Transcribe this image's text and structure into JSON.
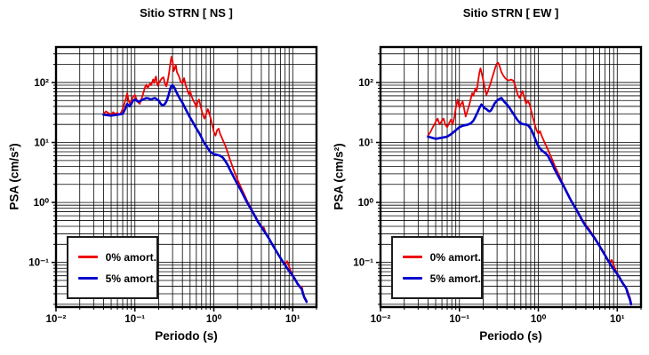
{
  "figure": {
    "background": "#ffffff",
    "text_color": "#000000",
    "grid_color": "#000000"
  },
  "chart_data": [
    {
      "type": "line",
      "title": "Sitio STRN [ NS ]",
      "xlabel": "Periodo (s)",
      "ylabel": "PSA (cm/s²)",
      "xscale": "log",
      "yscale": "log",
      "xlim": [
        0.01,
        20
      ],
      "ylim": [
        0.018,
        390
      ],
      "grid": "major+minor",
      "x_ticks": {
        "values": [
          0.01,
          0.1,
          1,
          10
        ],
        "labels": [
          "10⁻²",
          "10⁻¹",
          "10⁰",
          "10¹"
        ]
      },
      "y_ticks": {
        "values": [
          0.1,
          1,
          10,
          100
        ],
        "labels": [
          "10⁻¹",
          "10⁰",
          "10¹",
          "10²"
        ]
      },
      "legend": {
        "position": "lower-left",
        "entries": [
          {
            "label": "0% amort.",
            "color": "#ee0000"
          },
          {
            "label": "5% amort.",
            "color": "#0000cd"
          }
        ]
      },
      "series": [
        {
          "name": "0% amort.",
          "color": "#ee0000",
          "x": [
            0.04,
            0.043,
            0.046,
            0.05,
            0.053,
            0.056,
            0.06,
            0.064,
            0.068,
            0.072,
            0.077,
            0.08,
            0.083,
            0.087,
            0.09,
            0.095,
            0.1,
            0.105,
            0.11,
            0.115,
            0.12,
            0.125,
            0.13,
            0.135,
            0.14,
            0.145,
            0.15,
            0.155,
            0.16,
            0.165,
            0.17,
            0.175,
            0.18,
            0.185,
            0.19,
            0.195,
            0.2,
            0.21,
            0.22,
            0.23,
            0.24,
            0.25,
            0.26,
            0.27,
            0.28,
            0.29,
            0.3,
            0.31,
            0.32,
            0.33,
            0.34,
            0.36,
            0.38,
            0.4,
            0.42,
            0.44,
            0.46,
            0.48,
            0.5,
            0.52,
            0.55,
            0.58,
            0.6,
            0.62,
            0.65,
            0.68,
            0.72,
            0.76,
            0.8,
            0.84,
            0.88,
            0.92,
            0.96,
            1.0,
            1.05,
            1.1,
            1.15,
            1.2,
            1.3,
            1.4,
            1.5,
            1.6,
            1.8,
            2.0,
            2.2,
            2.5,
            2.7,
            3.0,
            3.3,
            3.6,
            4.0,
            4.3,
            4.6,
            5.0,
            5.5,
            6.0,
            6.5,
            7.0,
            7.5,
            8.0,
            8.5,
            9.0,
            9.5,
            10,
            10.5,
            11,
            11.5,
            12,
            12.5,
            13,
            13.5,
            14,
            14.5,
            15
          ],
          "y": [
            30,
            33,
            31,
            29,
            32,
            30,
            31,
            29,
            33,
            40,
            55,
            66,
            50,
            44,
            50,
            58,
            62,
            52,
            47,
            44,
            52,
            60,
            72,
            85,
            92,
            80,
            88,
            96,
            90,
            100,
            112,
            98,
            115,
            126,
            100,
            88,
            96,
            108,
            118,
            122,
            96,
            86,
            106,
            140,
            200,
            268,
            230,
            155,
            172,
            196,
            150,
            128,
            104,
            96,
            118,
            90,
            76,
            64,
            72,
            60,
            50,
            44,
            38,
            46,
            52,
            40,
            30,
            25,
            30,
            36,
            30,
            24,
            19,
            15,
            13,
            16,
            17,
            14,
            11,
            8.8,
            6.8,
            5.2,
            3.4,
            2.4,
            1.8,
            1.25,
            1.0,
            0.78,
            0.62,
            0.5,
            0.4,
            0.38,
            0.3,
            0.25,
            0.2,
            0.165,
            0.14,
            0.12,
            0.105,
            0.092,
            0.105,
            0.085,
            0.07,
            0.062,
            0.056,
            0.05,
            0.045,
            0.042,
            0.038,
            0.04,
            0.032,
            0.027,
            0.025,
            0.023
          ]
        },
        {
          "name": "5% amort.",
          "color": "#0000cd",
          "x": [
            0.04,
            0.05,
            0.06,
            0.07,
            0.075,
            0.08,
            0.085,
            0.09,
            0.095,
            0.1,
            0.11,
            0.12,
            0.13,
            0.14,
            0.15,
            0.16,
            0.17,
            0.18,
            0.19,
            0.2,
            0.21,
            0.22,
            0.23,
            0.24,
            0.25,
            0.26,
            0.27,
            0.28,
            0.29,
            0.3,
            0.31,
            0.32,
            0.33,
            0.35,
            0.37,
            0.4,
            0.43,
            0.46,
            0.5,
            0.54,
            0.58,
            0.62,
            0.66,
            0.7,
            0.75,
            0.8,
            0.85,
            0.9,
            0.95,
            1.0,
            1.1,
            1.2,
            1.3,
            1.4,
            1.5,
            1.6,
            1.8,
            2.0,
            2.2,
            2.5,
            2.7,
            3.0,
            3.3,
            3.6,
            4.0,
            4.5,
            5.0,
            5.5,
            6.0,
            6.5,
            7.0,
            7.5,
            8.0,
            8.5,
            9.0,
            9.5,
            10,
            10.5,
            11,
            11.5,
            12,
            12.5,
            13,
            13.5,
            14,
            14.5,
            15
          ],
          "y": [
            29,
            28,
            29,
            30,
            36,
            44,
            40,
            44,
            50,
            52,
            48,
            50,
            53,
            55,
            54,
            52,
            54,
            55,
            52,
            50,
            45,
            42,
            42,
            44,
            48,
            55,
            65,
            78,
            88,
            90,
            85,
            80,
            72,
            62,
            54,
            46,
            38,
            32,
            26,
            22,
            18.5,
            16,
            14,
            12,
            10,
            8.8,
            7.8,
            7.0,
            6.6,
            6.4,
            6.2,
            6.0,
            5.6,
            4.9,
            4.2,
            3.5,
            2.6,
            2.0,
            1.6,
            1.15,
            0.95,
            0.75,
            0.6,
            0.48,
            0.39,
            0.31,
            0.25,
            0.2,
            0.165,
            0.138,
            0.118,
            0.102,
            0.09,
            0.08,
            0.072,
            0.066,
            0.06,
            0.054,
            0.049,
            0.044,
            0.041,
            0.038,
            0.036,
            0.03,
            0.026,
            0.024,
            0.022
          ]
        }
      ]
    },
    {
      "type": "line",
      "title": "Sitio STRN [ EW ]",
      "xlabel": "Periodo (s)",
      "ylabel": "PSA (cm/s²)",
      "xscale": "log",
      "yscale": "log",
      "xlim": [
        0.01,
        20
      ],
      "ylim": [
        0.018,
        390
      ],
      "grid": "major+minor",
      "x_ticks": {
        "values": [
          0.01,
          0.1,
          1,
          10
        ],
        "labels": [
          "10⁻²",
          "10⁻¹",
          "10⁰",
          "10¹"
        ]
      },
      "y_ticks": {
        "values": [
          0.1,
          1,
          10,
          100
        ],
        "labels": [
          "10⁻¹",
          "10⁰",
          "10¹",
          "10²"
        ]
      },
      "legend": {
        "position": "lower-left",
        "entries": [
          {
            "label": "0% amort.",
            "color": "#ee0000"
          },
          {
            "label": "5% amort.",
            "color": "#0000cd"
          }
        ]
      },
      "series": [
        {
          "name": "0% amort.",
          "color": "#ee0000",
          "x": [
            0.04,
            0.043,
            0.046,
            0.05,
            0.053,
            0.056,
            0.06,
            0.063,
            0.066,
            0.07,
            0.074,
            0.078,
            0.082,
            0.086,
            0.09,
            0.095,
            0.1,
            0.105,
            0.11,
            0.115,
            0.12,
            0.125,
            0.13,
            0.135,
            0.14,
            0.145,
            0.15,
            0.155,
            0.16,
            0.165,
            0.17,
            0.175,
            0.18,
            0.185,
            0.19,
            0.2,
            0.21,
            0.22,
            0.23,
            0.24,
            0.25,
            0.26,
            0.27,
            0.28,
            0.29,
            0.3,
            0.31,
            0.32,
            0.33,
            0.34,
            0.36,
            0.38,
            0.4,
            0.42,
            0.45,
            0.48,
            0.5,
            0.52,
            0.55,
            0.58,
            0.6,
            0.63,
            0.66,
            0.7,
            0.74,
            0.78,
            0.82,
            0.86,
            0.9,
            0.95,
            1.0,
            1.05,
            1.1,
            1.2,
            1.3,
            1.4,
            1.5,
            1.6,
            1.8,
            2.0,
            2.2,
            2.5,
            2.7,
            3.0,
            3.3,
            3.6,
            4.0,
            4.4,
            4.8,
            5.2,
            5.6,
            6.0,
            6.5,
            7.0,
            7.5,
            8.0,
            8.5,
            9.0,
            9.5,
            10,
            10.5,
            11,
            11.5,
            12,
            12.5,
            13,
            13.5,
            14,
            14.5,
            15
          ],
          "y": [
            13,
            15,
            18,
            22,
            25,
            20,
            23,
            25,
            20,
            18,
            21,
            24,
            20,
            26,
            38,
            52,
            38,
            44,
            48,
            36,
            27,
            32,
            38,
            45,
            55,
            66,
            60,
            70,
            80,
            72,
            90,
            120,
            150,
            172,
            150,
            110,
            80,
            62,
            72,
            85,
            100,
            120,
            140,
            165,
            190,
            208,
            213,
            195,
            170,
            150,
            130,
            118,
            112,
            108,
            112,
            108,
            95,
            80,
            62,
            55,
            62,
            72,
            58,
            44,
            50,
            42,
            32,
            25,
            20,
            16,
            14,
            15.5,
            13,
            10,
            8,
            6.4,
            5.2,
            4.2,
            3.0,
            2.2,
            1.7,
            1.2,
            1.0,
            0.8,
            0.64,
            0.52,
            0.42,
            0.36,
            0.3,
            0.26,
            0.22,
            0.19,
            0.16,
            0.135,
            0.115,
            0.1,
            0.11,
            0.09,
            0.075,
            0.066,
            0.06,
            0.054,
            0.048,
            0.044,
            0.04,
            0.037,
            0.034,
            0.029,
            0.026,
            0.021
          ]
        },
        {
          "name": "5% amort.",
          "color": "#0000cd",
          "x": [
            0.04,
            0.05,
            0.06,
            0.07,
            0.08,
            0.09,
            0.1,
            0.11,
            0.12,
            0.13,
            0.14,
            0.15,
            0.16,
            0.17,
            0.18,
            0.19,
            0.2,
            0.21,
            0.22,
            0.23,
            0.24,
            0.25,
            0.26,
            0.27,
            0.28,
            0.3,
            0.32,
            0.34,
            0.36,
            0.38,
            0.4,
            0.43,
            0.46,
            0.5,
            0.54,
            0.58,
            0.62,
            0.66,
            0.7,
            0.75,
            0.8,
            0.85,
            0.9,
            0.95,
            1.0,
            1.1,
            1.2,
            1.3,
            1.4,
            1.5,
            1.6,
            1.8,
            2.0,
            2.2,
            2.5,
            2.7,
            3.0,
            3.3,
            3.6,
            4.0,
            4.4,
            4.8,
            5.2,
            5.6,
            6.0,
            6.5,
            7.0,
            7.5,
            8.0,
            8.5,
            9.0,
            9.5,
            10,
            10.5,
            11,
            11.5,
            12,
            12.5,
            13,
            13.5,
            14,
            14.5,
            15
          ],
          "y": [
            12.5,
            11.5,
            12,
            12.5,
            14,
            16,
            18,
            19,
            19.5,
            20,
            21,
            23,
            27,
            32,
            38,
            43,
            40,
            37,
            36,
            34,
            33,
            34,
            37,
            41,
            45,
            50,
            53,
            55,
            50,
            46,
            43,
            38,
            33,
            28,
            24,
            21.5,
            20.5,
            20,
            20,
            19,
            17,
            14.5,
            12,
            10,
            8.6,
            7.4,
            6.8,
            6.2,
            5.2,
            4.4,
            3.6,
            2.7,
            2.1,
            1.65,
            1.18,
            0.98,
            0.78,
            0.62,
            0.5,
            0.4,
            0.34,
            0.29,
            0.25,
            0.215,
            0.185,
            0.155,
            0.132,
            0.112,
            0.098,
            0.086,
            0.077,
            0.07,
            0.064,
            0.058,
            0.052,
            0.047,
            0.043,
            0.04,
            0.037,
            0.031,
            0.027,
            0.024,
            0.02
          ]
        }
      ]
    }
  ]
}
